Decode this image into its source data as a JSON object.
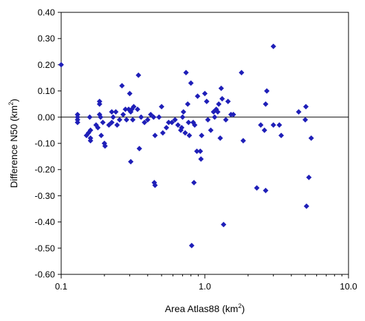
{
  "chart_data": {
    "type": "scatter",
    "title": "",
    "xlabel": "Area Atlas88 (km",
    "xlabel_sup": "2",
    "xlabel_end": ")",
    "ylabel": "Difference N50  (km",
    "ylabel_sup": "2",
    "ylabel_end": ")",
    "x_scale": "log",
    "xlim": [
      0.1,
      10.0
    ],
    "ylim": [
      -0.6,
      0.4
    ],
    "x_ticks": [
      "0.1",
      "1.0",
      "10.0"
    ],
    "x_tick_values": [
      0.1,
      1.0,
      10.0
    ],
    "y_ticks": [
      "-0.60",
      "-0.50",
      "-0.40",
      "-0.30",
      "-0.20",
      "-0.10",
      "0.00",
      "0.10",
      "0.20",
      "0.30",
      "0.40"
    ],
    "y_tick_values": [
      -0.6,
      -0.5,
      -0.4,
      -0.3,
      -0.2,
      -0.1,
      0.0,
      0.1,
      0.2,
      0.3,
      0.4
    ],
    "grid": false,
    "zero_line": true,
    "marker": "diamond",
    "marker_color": "#1f1fb8",
    "points": [
      [
        0.1,
        0.2
      ],
      [
        0.13,
        0.01
      ],
      [
        0.13,
        0.0
      ],
      [
        0.13,
        -0.01
      ],
      [
        0.13,
        -0.02
      ],
      [
        0.15,
        -0.07
      ],
      [
        0.155,
        -0.06
      ],
      [
        0.158,
        0.0
      ],
      [
        0.16,
        -0.05
      ],
      [
        0.16,
        -0.08
      ],
      [
        0.16,
        -0.09
      ],
      [
        0.175,
        -0.03
      ],
      [
        0.18,
        -0.04
      ],
      [
        0.185,
        0.06
      ],
      [
        0.185,
        0.05
      ],
      [
        0.185,
        0.01
      ],
      [
        0.188,
        0.0
      ],
      [
        0.19,
        -0.07
      ],
      [
        0.195,
        -0.02
      ],
      [
        0.2,
        -0.1
      ],
      [
        0.202,
        -0.11
      ],
      [
        0.215,
        -0.03
      ],
      [
        0.225,
        0.02
      ],
      [
        0.225,
        -0.02
      ],
      [
        0.23,
        0.0
      ],
      [
        0.24,
        0.02
      ],
      [
        0.245,
        -0.03
      ],
      [
        0.255,
        -0.01
      ],
      [
        0.265,
        0.12
      ],
      [
        0.27,
        0.01
      ],
      [
        0.28,
        0.03
      ],
      [
        0.285,
        -0.01
      ],
      [
        0.295,
        0.03
      ],
      [
        0.3,
        0.09
      ],
      [
        0.305,
        -0.17
      ],
      [
        0.305,
        0.02
      ],
      [
        0.31,
        0.03
      ],
      [
        0.315,
        -0.01
      ],
      [
        0.32,
        0.04
      ],
      [
        0.34,
        0.03
      ],
      [
        0.345,
        0.16
      ],
      [
        0.35,
        -0.12
      ],
      [
        0.36,
        0.0
      ],
      [
        0.38,
        -0.02
      ],
      [
        0.4,
        -0.01
      ],
      [
        0.42,
        0.01
      ],
      [
        0.44,
        0.0
      ],
      [
        0.445,
        -0.25
      ],
      [
        0.45,
        -0.26
      ],
      [
        0.45,
        -0.07
      ],
      [
        0.48,
        0.0
      ],
      [
        0.5,
        0.04
      ],
      [
        0.51,
        -0.06
      ],
      [
        0.54,
        -0.04
      ],
      [
        0.56,
        -0.02
      ],
      [
        0.59,
        -0.02
      ],
      [
        0.62,
        -0.01
      ],
      [
        0.65,
        -0.03
      ],
      [
        0.68,
        -0.05
      ],
      [
        0.69,
        -0.04
      ],
      [
        0.7,
        0.0
      ],
      [
        0.71,
        0.02
      ],
      [
        0.73,
        -0.06
      ],
      [
        0.74,
        0.17
      ],
      [
        0.76,
        0.05
      ],
      [
        0.77,
        -0.02
      ],
      [
        0.78,
        -0.07
      ],
      [
        0.8,
        0.13
      ],
      [
        0.81,
        -0.49
      ],
      [
        0.83,
        -0.02
      ],
      [
        0.84,
        -0.25
      ],
      [
        0.85,
        -0.03
      ],
      [
        0.88,
        -0.13
      ],
      [
        0.89,
        0.08
      ],
      [
        0.93,
        -0.13
      ],
      [
        0.94,
        -0.16
      ],
      [
        0.95,
        -0.07
      ],
      [
        1.0,
        0.09
      ],
      [
        1.03,
        0.06
      ],
      [
        1.05,
        -0.01
      ],
      [
        1.1,
        -0.05
      ],
      [
        1.15,
        0.02
      ],
      [
        1.17,
        0.0
      ],
      [
        1.2,
        0.03
      ],
      [
        1.23,
        0.02
      ],
      [
        1.25,
        0.05
      ],
      [
        1.28,
        -0.08
      ],
      [
        1.3,
        0.11
      ],
      [
        1.32,
        0.07
      ],
      [
        1.35,
        -0.41
      ],
      [
        1.4,
        -0.01
      ],
      [
        1.45,
        0.06
      ],
      [
        1.52,
        0.01
      ],
      [
        1.58,
        0.01
      ],
      [
        1.8,
        0.17
      ],
      [
        1.85,
        -0.09
      ],
      [
        2.3,
        -0.27
      ],
      [
        2.45,
        -0.03
      ],
      [
        2.6,
        -0.05
      ],
      [
        2.65,
        -0.28
      ],
      [
        2.65,
        0.05
      ],
      [
        2.7,
        0.1
      ],
      [
        3.0,
        0.27
      ],
      [
        3.0,
        -0.03
      ],
      [
        3.3,
        -0.03
      ],
      [
        3.4,
        -0.07
      ],
      [
        4.5,
        0.02
      ],
      [
        5.0,
        -0.01
      ],
      [
        5.05,
        0.04
      ],
      [
        5.1,
        -0.34
      ],
      [
        5.3,
        -0.23
      ],
      [
        5.5,
        -0.08
      ]
    ]
  }
}
